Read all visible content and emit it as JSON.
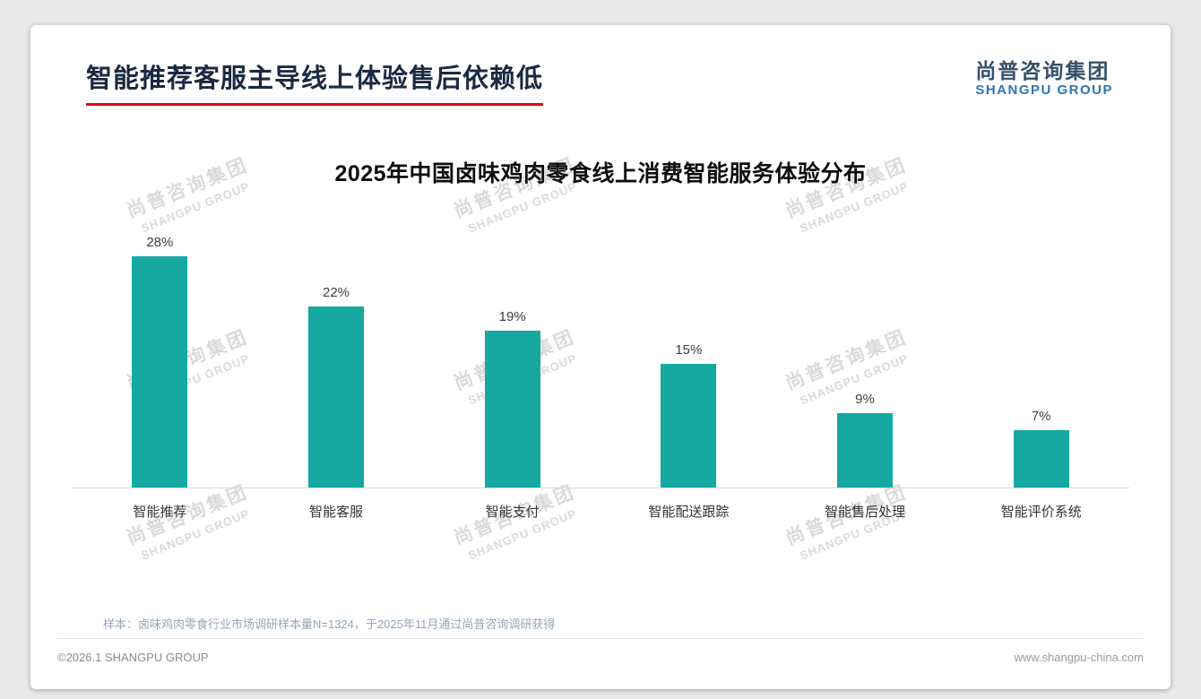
{
  "header": {
    "title": "智能推荐客服主导线上体验售后依赖低",
    "logo": {
      "cn": "尚普咨询集团",
      "en": "SHANGPU GROUP"
    }
  },
  "chart_data": {
    "type": "bar",
    "title": "2025年中国卤味鸡肉零食线上消费智能服务体验分布",
    "categories": [
      "智能推荐",
      "智能客服",
      "智能支付",
      "智能配送跟踪",
      "智能售后处理",
      "智能评价系统"
    ],
    "values": [
      28,
      22,
      19,
      15,
      9,
      7
    ],
    "unit": "%",
    "value_labels": [
      "28%",
      "22%",
      "19%",
      "15%",
      "9%",
      "7%"
    ],
    "bar_color": "#16a9a2",
    "ylim": [
      0,
      30
    ],
    "grid": false,
    "legend": "none",
    "data_labels": true
  },
  "watermark": {
    "cn": "尚普咨询集团",
    "en": "SHANGPU GROUP"
  },
  "note": "样本：卤味鸡肉零食行业市场调研样本量N=1324，于2025年11月通过尚普咨询调研获得",
  "footer": {
    "left": "©2026.1 SHANGPU GROUP",
    "right": "www.shangpu-china.com"
  },
  "colors": {
    "bar": "#16a9a2",
    "accent_red": "#e60012",
    "logo_navy": "#35506b",
    "logo_blue": "#2e74b5",
    "note_text": "#93a5bd",
    "watermark": "#dadada"
  }
}
